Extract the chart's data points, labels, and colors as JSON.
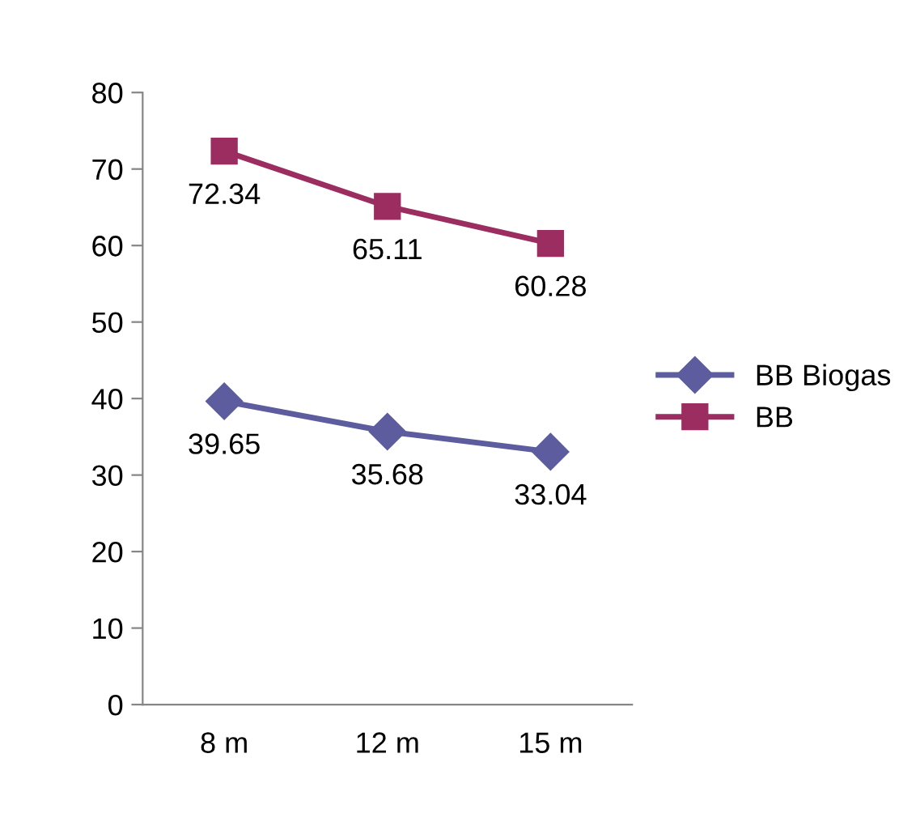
{
  "chart_data": {
    "type": "line",
    "categories": [
      "8 m",
      "12 m",
      "15 m"
    ],
    "series": [
      {
        "name": "BB Biogas",
        "color": "#5c5c9e",
        "values": [
          39.65,
          35.68,
          33.04
        ],
        "marker": "diamond"
      },
      {
        "name": "BB",
        "color": "#9b2d60",
        "values": [
          72.34,
          65.11,
          60.28
        ],
        "marker": "square"
      }
    ],
    "ylim": [
      0,
      80
    ],
    "yticks": [
      0,
      10,
      20,
      30,
      40,
      50,
      60,
      70,
      80
    ],
    "grid": false,
    "legend": "right",
    "data_labels": true,
    "line_style": "solid"
  }
}
